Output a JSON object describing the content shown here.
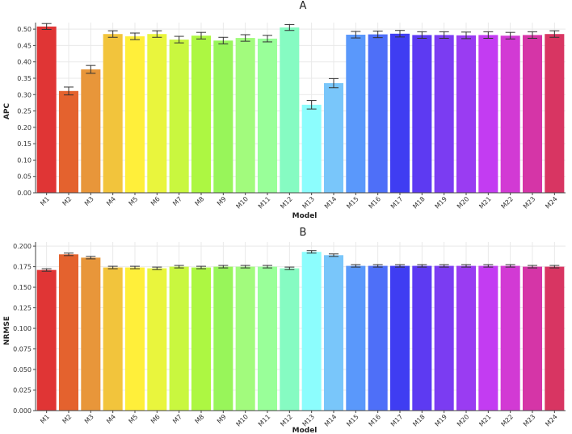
{
  "chart_data": [
    {
      "type": "bar",
      "title": "A",
      "xlabel": "Model",
      "ylabel": "APC",
      "ylim": [
        0,
        0.52
      ],
      "yticks": [
        0.0,
        0.05,
        0.1,
        0.15,
        0.2,
        0.25,
        0.3,
        0.35,
        0.4,
        0.45,
        0.5
      ],
      "ytick_labels": [
        "0.00",
        "0.05",
        "0.10",
        "0.15",
        "0.20",
        "0.25",
        "0.30",
        "0.35",
        "0.40",
        "0.45",
        "0.50"
      ],
      "grid": true,
      "categories": [
        "M1",
        "M2",
        "M3",
        "M4",
        "M5",
        "M6",
        "M7",
        "M8",
        "M9",
        "M10",
        "M11",
        "M12",
        "M13",
        "M14",
        "M15",
        "M16",
        "M17",
        "M18",
        "M19",
        "M20",
        "M21",
        "M22",
        "M23",
        "M24"
      ],
      "values": [
        0.508,
        0.311,
        0.377,
        0.485,
        0.478,
        0.485,
        0.468,
        0.48,
        0.465,
        0.473,
        0.471,
        0.505,
        0.269,
        0.335,
        0.483,
        0.484,
        0.486,
        0.482,
        0.482,
        0.481,
        0.482,
        0.48,
        0.482,
        0.485
      ],
      "errors": [
        0.009,
        0.012,
        0.012,
        0.01,
        0.01,
        0.01,
        0.01,
        0.01,
        0.01,
        0.01,
        0.01,
        0.009,
        0.013,
        0.014,
        0.01,
        0.01,
        0.01,
        0.01,
        0.01,
        0.01,
        0.01,
        0.01,
        0.01,
        0.01
      ],
      "colors": [
        "#e03535",
        "#e4622e",
        "#e8963a",
        "#f2c43c",
        "#ffef3a",
        "#e9f53d",
        "#c9f73f",
        "#adf742",
        "#98f55a",
        "#a2fb7d",
        "#99ff99",
        "#86fbc2",
        "#8cfdfd",
        "#79c6fa",
        "#5a98fb",
        "#4e6ff8",
        "#3f3df2",
        "#5d3af2",
        "#7b3cf2",
        "#9a3cf2",
        "#c33cf2",
        "#d23ad4",
        "#d535a7",
        "#d83562"
      ]
    },
    {
      "type": "bar",
      "title": "B",
      "xlabel": "Model",
      "ylabel": "NRMSE",
      "ylim": [
        0,
        0.205
      ],
      "yticks": [
        0.0,
        0.025,
        0.05,
        0.075,
        0.1,
        0.125,
        0.15,
        0.175,
        0.2
      ],
      "ytick_labels": [
        "0.000",
        "0.025",
        "0.050",
        "0.075",
        "0.100",
        "0.125",
        "0.150",
        "0.175",
        "0.200"
      ],
      "grid": true,
      "categories": [
        "M1",
        "M2",
        "M3",
        "M4",
        "M5",
        "M6",
        "M7",
        "M8",
        "M9",
        "M10",
        "M11",
        "M12",
        "M13",
        "M14",
        "M15",
        "M16",
        "M17",
        "M18",
        "M19",
        "M20",
        "M21",
        "M22",
        "M23",
        "M24"
      ],
      "values": [
        0.171,
        0.19,
        0.186,
        0.174,
        0.174,
        0.173,
        0.175,
        0.174,
        0.175,
        0.175,
        0.175,
        0.173,
        0.193,
        0.189,
        0.176,
        0.176,
        0.176,
        0.176,
        0.176,
        0.176,
        0.176,
        0.176,
        0.175,
        0.175
      ],
      "errors": [
        0.0015,
        0.0015,
        0.0015,
        0.0015,
        0.0015,
        0.0015,
        0.0015,
        0.0015,
        0.0015,
        0.0015,
        0.0015,
        0.0015,
        0.0015,
        0.0015,
        0.0015,
        0.0015,
        0.0015,
        0.0015,
        0.0015,
        0.0015,
        0.0015,
        0.0015,
        0.0015,
        0.0015
      ],
      "colors": [
        "#e03535",
        "#e4622e",
        "#e8963a",
        "#f2c43c",
        "#ffef3a",
        "#e9f53d",
        "#c9f73f",
        "#adf742",
        "#98f55a",
        "#a2fb7d",
        "#99ff99",
        "#86fbc2",
        "#8cfdfd",
        "#79c6fa",
        "#5a98fb",
        "#4e6ff8",
        "#3f3df2",
        "#5d3af2",
        "#7b3cf2",
        "#9a3cf2",
        "#c33cf2",
        "#d23ad4",
        "#d535a7",
        "#d83562"
      ]
    }
  ]
}
